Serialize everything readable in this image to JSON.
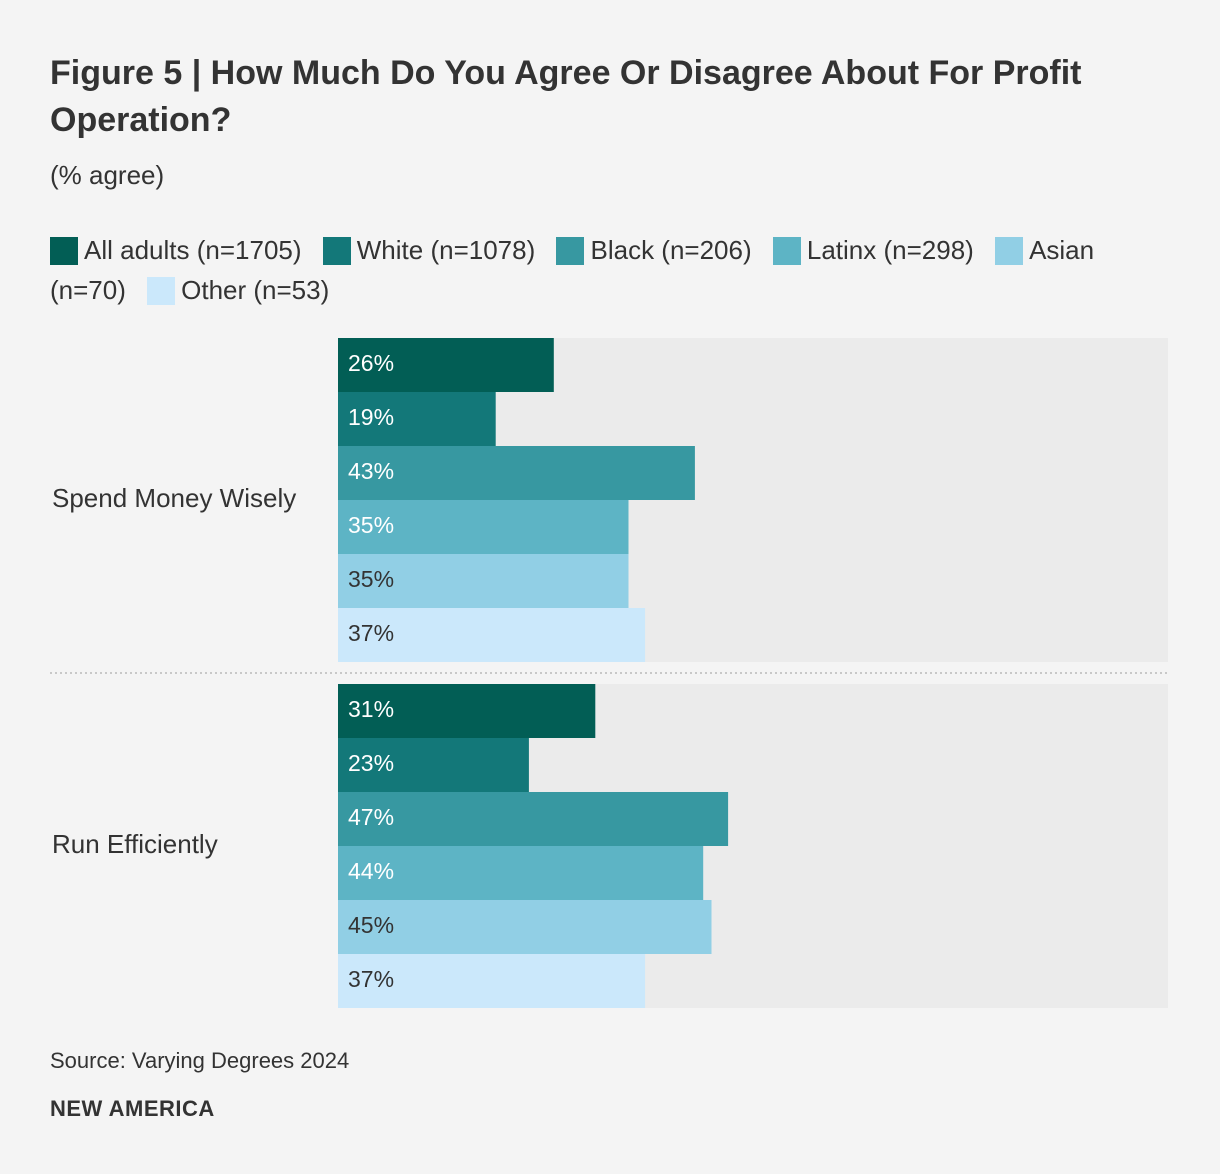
{
  "chart_data": {
    "type": "bar",
    "orientation": "horizontal",
    "title": "Figure 5 | How Much Do You Agree Or Disagree About For Profit Operation?",
    "subtitle": "(% agree)",
    "categories": [
      "Spend Money Wisely",
      "Run Efficiently"
    ],
    "xlim": [
      0,
      100
    ],
    "series": [
      {
        "name": "All adults (n=1705)",
        "color": "#025e55",
        "values": [
          26,
          31
        ],
        "labels": [
          "26%",
          "31%"
        ],
        "label_color": "#ffffff"
      },
      {
        "name": "White (n=1078)",
        "color": "#137879",
        "values": [
          19,
          23
        ],
        "labels": [
          "19%",
          "23%"
        ],
        "label_color": "#ffffff"
      },
      {
        "name": "Black (n=206)",
        "color": "#3798a1",
        "values": [
          43,
          47
        ],
        "labels": [
          "43%",
          "47%"
        ],
        "label_color": "#ffffff"
      },
      {
        "name": "Latinx (n=298)",
        "color": "#5db4c5",
        "values": [
          35,
          44
        ],
        "labels": [
          "35%",
          "44%"
        ],
        "label_color": "#ffffff"
      },
      {
        "name": "Asian (n=70)",
        "color": "#91cfe5",
        "values": [
          35,
          45
        ],
        "labels": [
          "35%",
          "45%"
        ],
        "label_color": "#333333"
      },
      {
        "name": "Other (n=53)",
        "color": "#cbe8fb",
        "values": [
          37,
          37
        ],
        "labels": [
          "37%",
          "37%"
        ],
        "label_color": "#333333"
      }
    ],
    "legend": "top"
  },
  "footer": {
    "source": "Source: Varying Degrees 2024",
    "brand": "NEW AMERICA"
  },
  "colors": {
    "background": "#f4f4f4",
    "track": "#ebebeb",
    "text": "#333333",
    "divider": "#c8c8c8"
  }
}
